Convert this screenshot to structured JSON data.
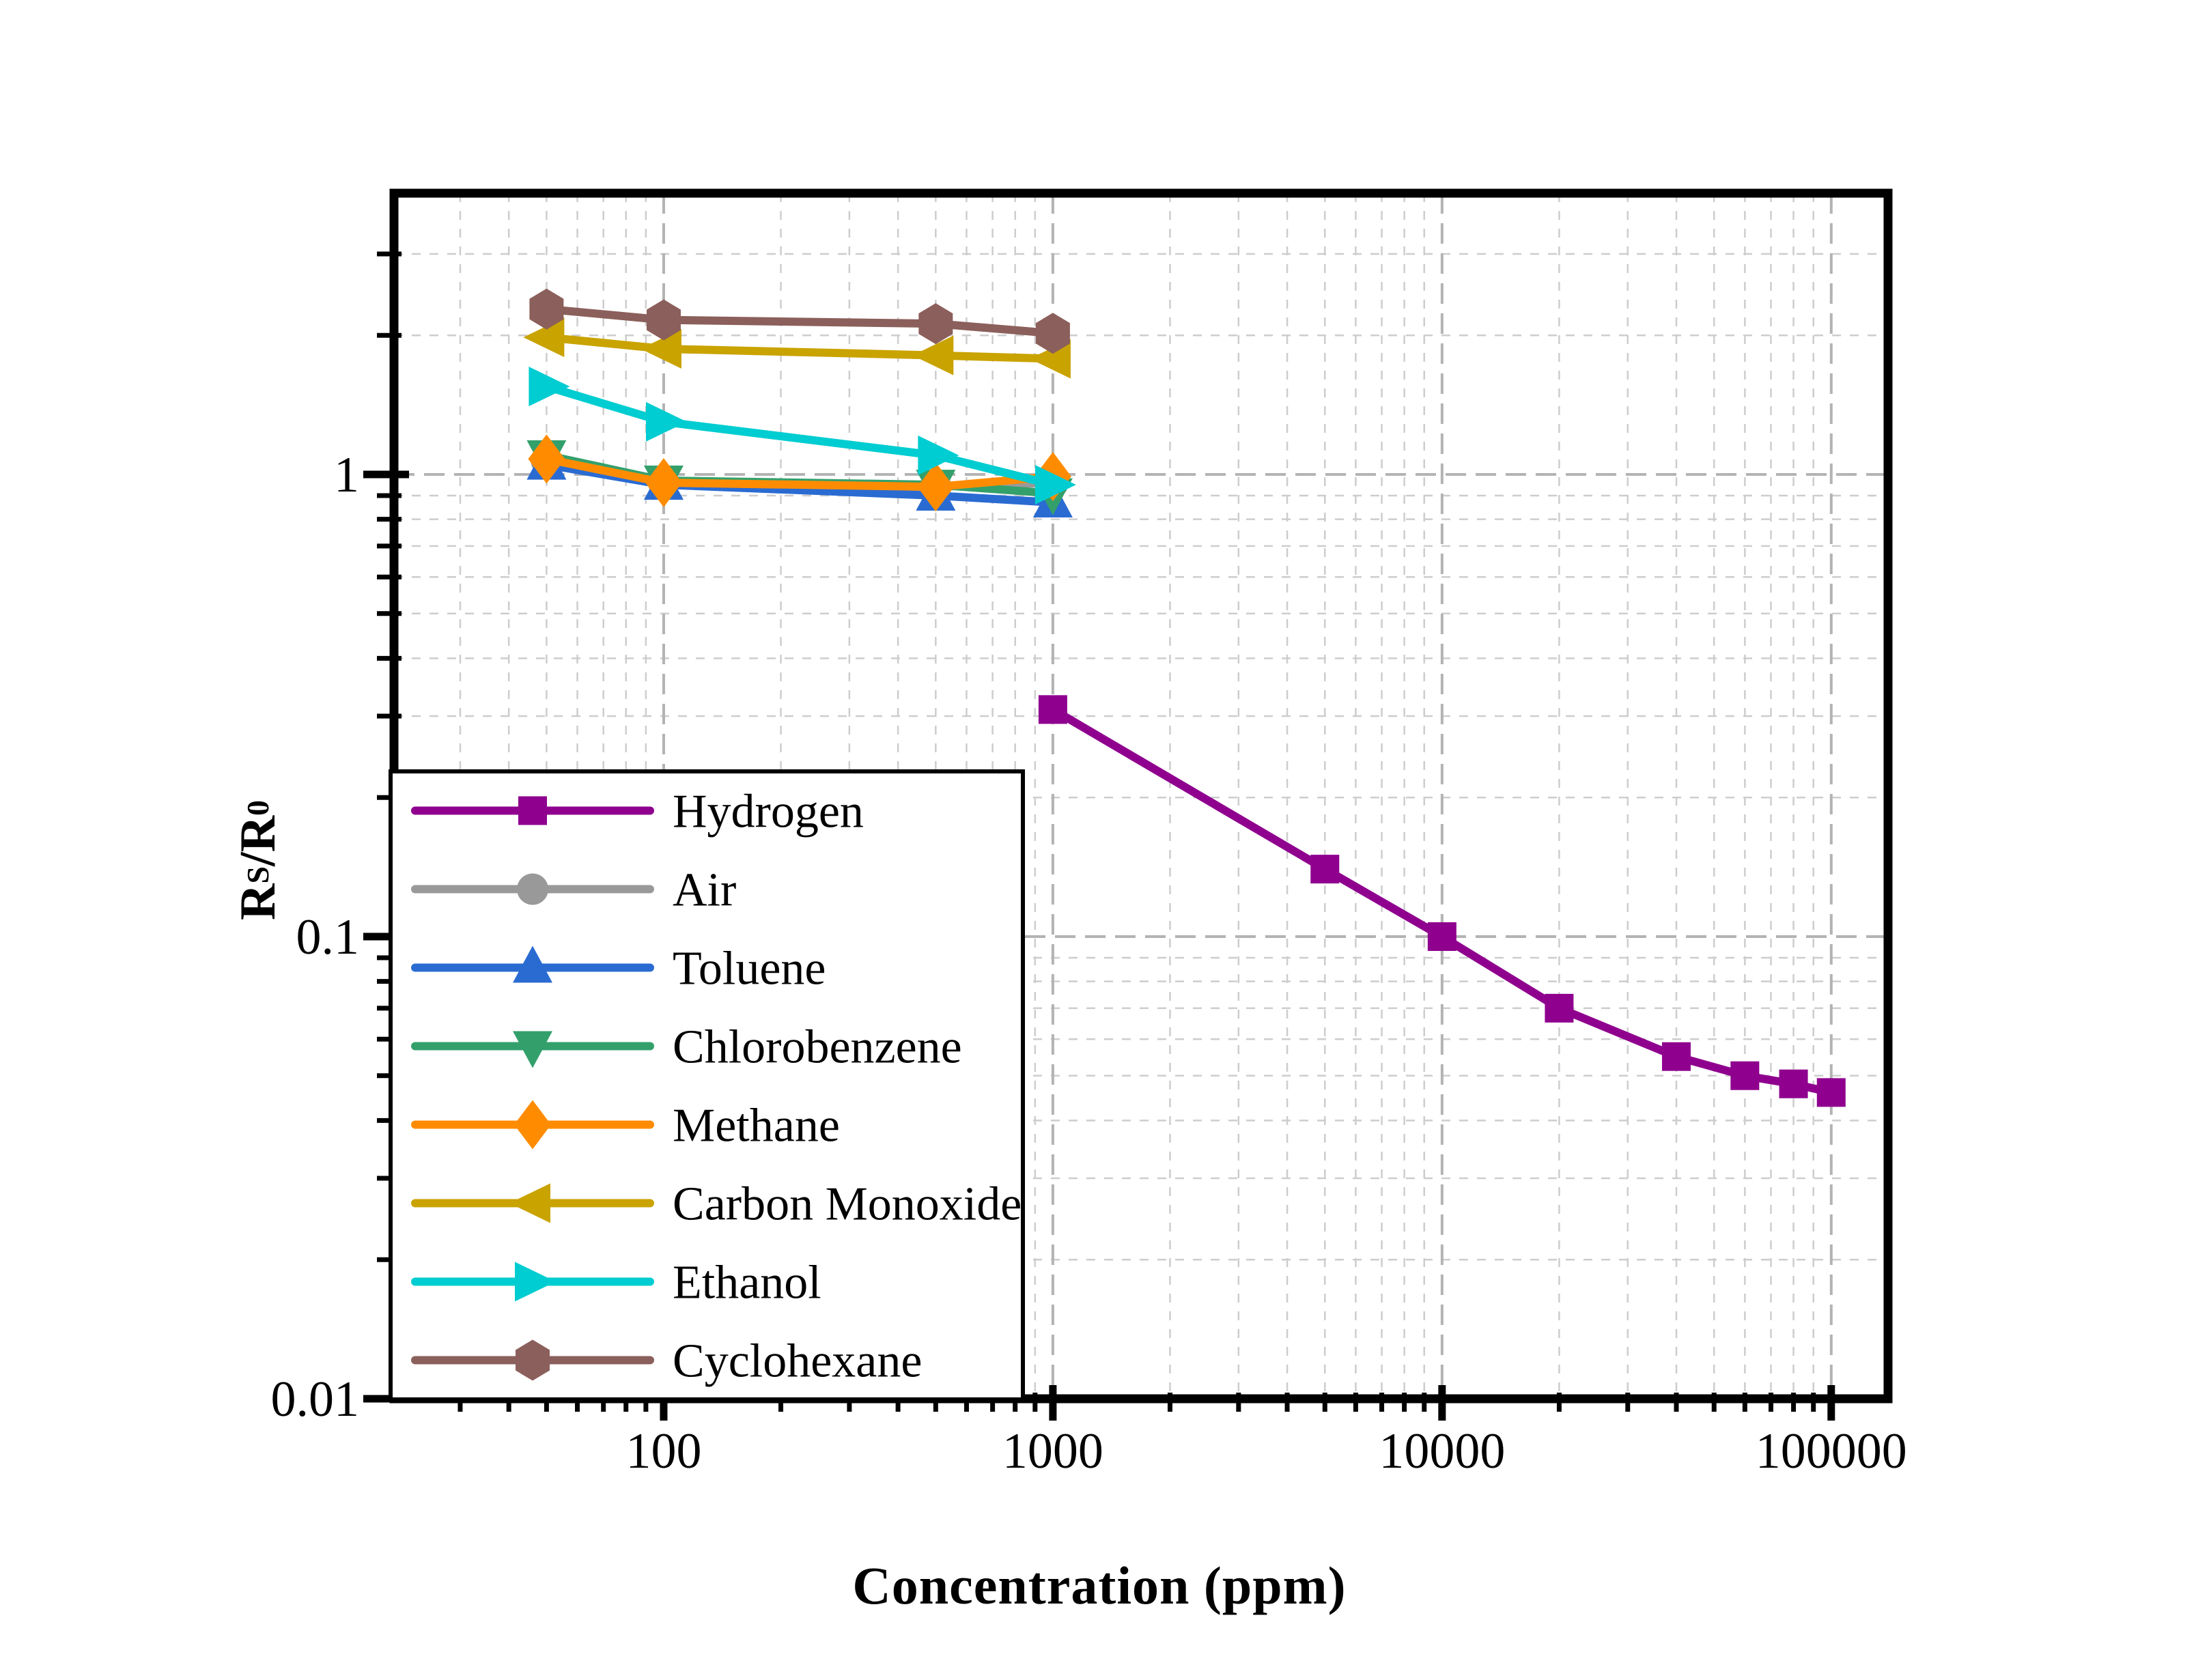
{
  "figure": {
    "background": "#ffffff"
  },
  "chart_data": {
    "type": "line",
    "title": "",
    "xlabel": "Concentration (ppm)",
    "ylabel": "RS/R0",
    "ylabel_parts": {
      "base1": "R",
      "sub1": "S",
      "base2": "/R",
      "sub2": "0"
    },
    "x_scale": "log",
    "y_scale": "log",
    "x_log_range": [
      1.307,
      5.146
    ],
    "y_log_range": [
      -2.0,
      0.6086
    ],
    "grid": {
      "minor": true,
      "major": true,
      "style": "dashed"
    },
    "x_ticks": [
      {
        "v": 100,
        "label": "100"
      },
      {
        "v": 1000,
        "label": "1000"
      },
      {
        "v": 10000,
        "label": "10000"
      },
      {
        "v": 100000,
        "label": "100000"
      }
    ],
    "y_ticks": [
      {
        "v": 1,
        "label": "1"
      },
      {
        "v": 0.1,
        "label": "0.1"
      },
      {
        "v": 0.01,
        "label": "0.01"
      }
    ],
    "legend_position": "bottom-left",
    "series": [
      {
        "name": "Hydrogen",
        "color": "#8F008F",
        "marker": "square",
        "x": [
          1000,
          5000,
          10000,
          20000,
          40000,
          60000,
          80000,
          100000
        ],
        "y": [
          0.31,
          0.14,
          0.1,
          0.07,
          0.055,
          0.05,
          0.048,
          0.046
        ]
      },
      {
        "name": "Air",
        "color": "#999999",
        "marker": "circle",
        "x": [
          50,
          100,
          500,
          1000
        ],
        "y": [
          1.07,
          0.96,
          0.94,
          0.96
        ]
      },
      {
        "name": "Toluene",
        "color": "#2A6BD2",
        "marker": "triangle-up",
        "x": [
          50,
          100,
          500,
          1000
        ],
        "y": [
          1.05,
          0.95,
          0.9,
          0.87
        ]
      },
      {
        "name": "Chlorobenzene",
        "color": "#33A06C",
        "marker": "triangle-down",
        "x": [
          50,
          100,
          500,
          1000
        ],
        "y": [
          1.1,
          0.97,
          0.95,
          0.91
        ]
      },
      {
        "name": "Methane",
        "color": "#FF8C00",
        "marker": "diamond",
        "x": [
          50,
          100,
          500,
          1000
        ],
        "y": [
          1.08,
          0.96,
          0.94,
          0.99
        ]
      },
      {
        "name": "Carbon Monoxide",
        "color": "#C9A300",
        "marker": "triangle-left",
        "x": [
          50,
          100,
          500,
          1000
        ],
        "y": [
          1.98,
          1.87,
          1.81,
          1.78
        ]
      },
      {
        "name": "Ethanol",
        "color": "#00CDD1",
        "marker": "triangle-right",
        "x": [
          50,
          100,
          500,
          1000
        ],
        "y": [
          1.55,
          1.3,
          1.1,
          0.95
        ]
      },
      {
        "name": "Cyclohexane",
        "color": "#8B5F5B",
        "marker": "hexagon",
        "x": [
          50,
          100,
          500,
          1000
        ],
        "y": [
          2.28,
          2.16,
          2.12,
          2.02
        ]
      }
    ]
  }
}
